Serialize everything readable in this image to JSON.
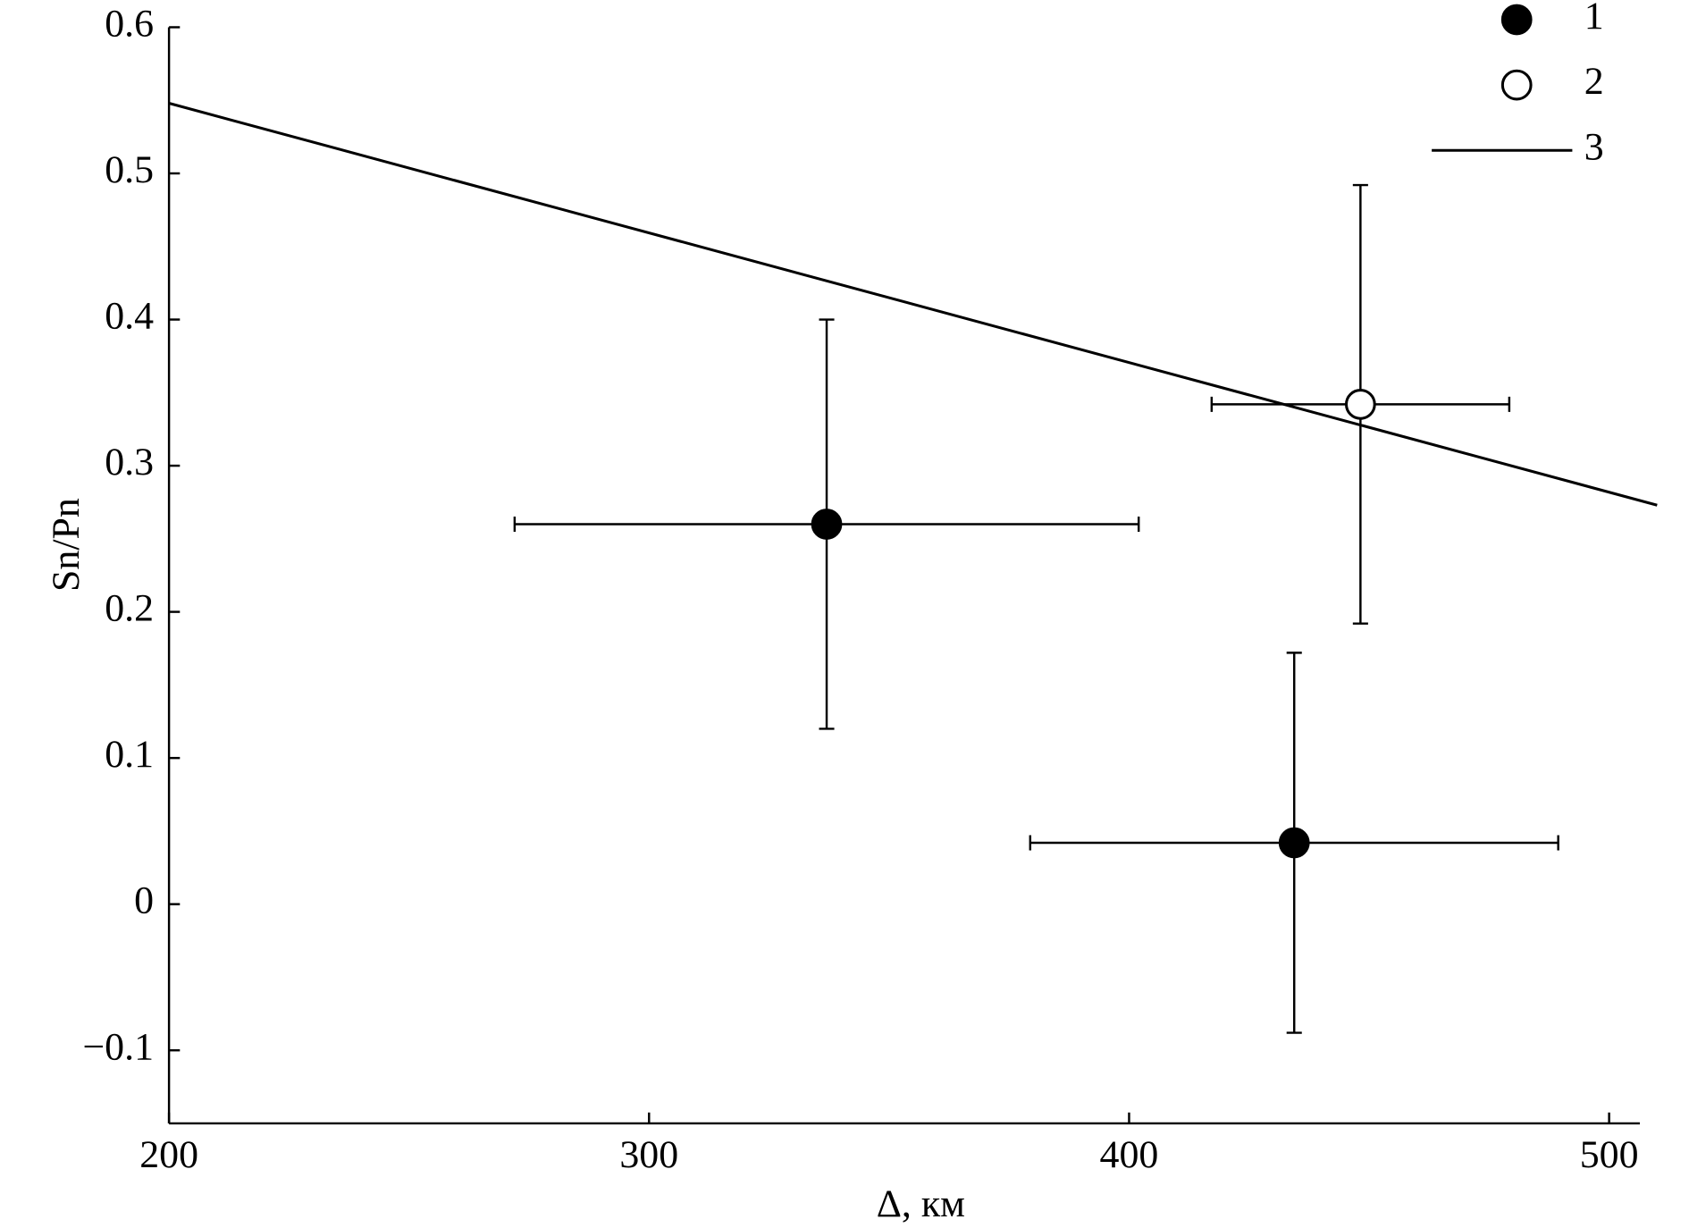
{
  "chart_data": {
    "type": "scatter",
    "x_label": "Δ, км",
    "y_label": "Sn/Pn",
    "xlim": [
      200,
      506.4
    ],
    "xticks": [
      200,
      300,
      400,
      500
    ],
    "ylim": [
      -0.15,
      0.6
    ],
    "yticks": [
      {
        "value": -0.1,
        "label": "−0.1"
      },
      0,
      0.1,
      0.2,
      0.3,
      0.4,
      0.5,
      0.6
    ],
    "legend": "upper right",
    "series": [
      {
        "name": "1",
        "color": "#000000",
        "fill": "#000000",
        "x": [
          337,
          434.4
        ],
        "values": [
          0.26,
          0.042
        ],
        "xerr": [
          65,
          55
        ],
        "yerr": [
          0.14,
          0.13
        ]
      },
      {
        "name": "2",
        "color": "#000000",
        "fill": "#ffffff",
        "x": [
          448.2
        ],
        "values": [
          0.342
        ],
        "xerr": [
          31
        ],
        "yerr": [
          0.15
        ]
      },
      {
        "name": "3",
        "type": "line",
        "color": "#000000",
        "x": [
          200,
          510
        ],
        "values": [
          0.548,
          0.273
        ]
      }
    ]
  }
}
